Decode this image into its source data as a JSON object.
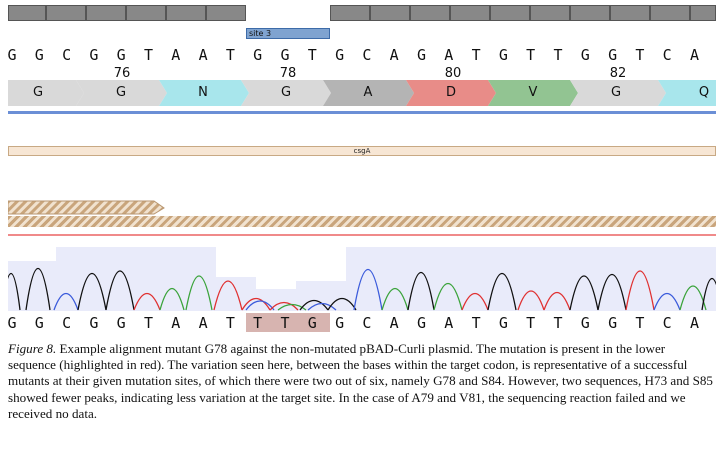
{
  "annotations": {
    "site_label": "site 3",
    "feature_label": "csgA"
  },
  "reference_sequence": [
    "G",
    "G",
    "C",
    "G",
    "G",
    "T",
    "A",
    "A",
    "T",
    "G",
    "G",
    "T",
    "G",
    "C",
    "A",
    "G",
    "A",
    "T",
    "G",
    "T",
    "T",
    "G",
    "G",
    "T",
    "C",
    "A"
  ],
  "position_numbers": [
    "76",
    "78",
    "80",
    "82"
  ],
  "amino_acids": [
    "G",
    "G",
    "N",
    "G",
    "A",
    "D",
    "V",
    "G",
    "Q"
  ],
  "read_sequence": [
    "G",
    "G",
    "C",
    "G",
    "G",
    "T",
    "A",
    "A",
    "T",
    "T",
    "T",
    "G",
    "G",
    "C",
    "A",
    "G",
    "A",
    "T",
    "G",
    "T",
    "T",
    "G",
    "G",
    "T",
    "C",
    "A"
  ],
  "mutation_highlight": {
    "color": "#d7b4b0"
  },
  "colors": {
    "aa_grey": "#d9d9d9",
    "aa_cyan": "#a8e6ec",
    "aa_darkgrey": "#b4b4b4",
    "aa_red": "#e88c88",
    "aa_green": "#92c492",
    "trace_a": "#3aa33a",
    "trace_c": "#3b5bdb",
    "trace_g": "#111111",
    "trace_t": "#e03131"
  },
  "caption": {
    "figure_label": "Figure 8.",
    "text": "Example alignment mutant G78  against the non-mutated pBAD-Curli plasmid. The mutation is present in the lower sequence (highlighted in red). The variation seen here, between the bases within the target codon, is representative of a successful mutants at their given mutation sites, of which there were two out of six, namely G78 and S84. However, two sequences, H73 and S85 showed fewer peaks, indicating less variation at the target site. In the case of A79 and V81, the sequencing reaction failed and we received no data."
  }
}
